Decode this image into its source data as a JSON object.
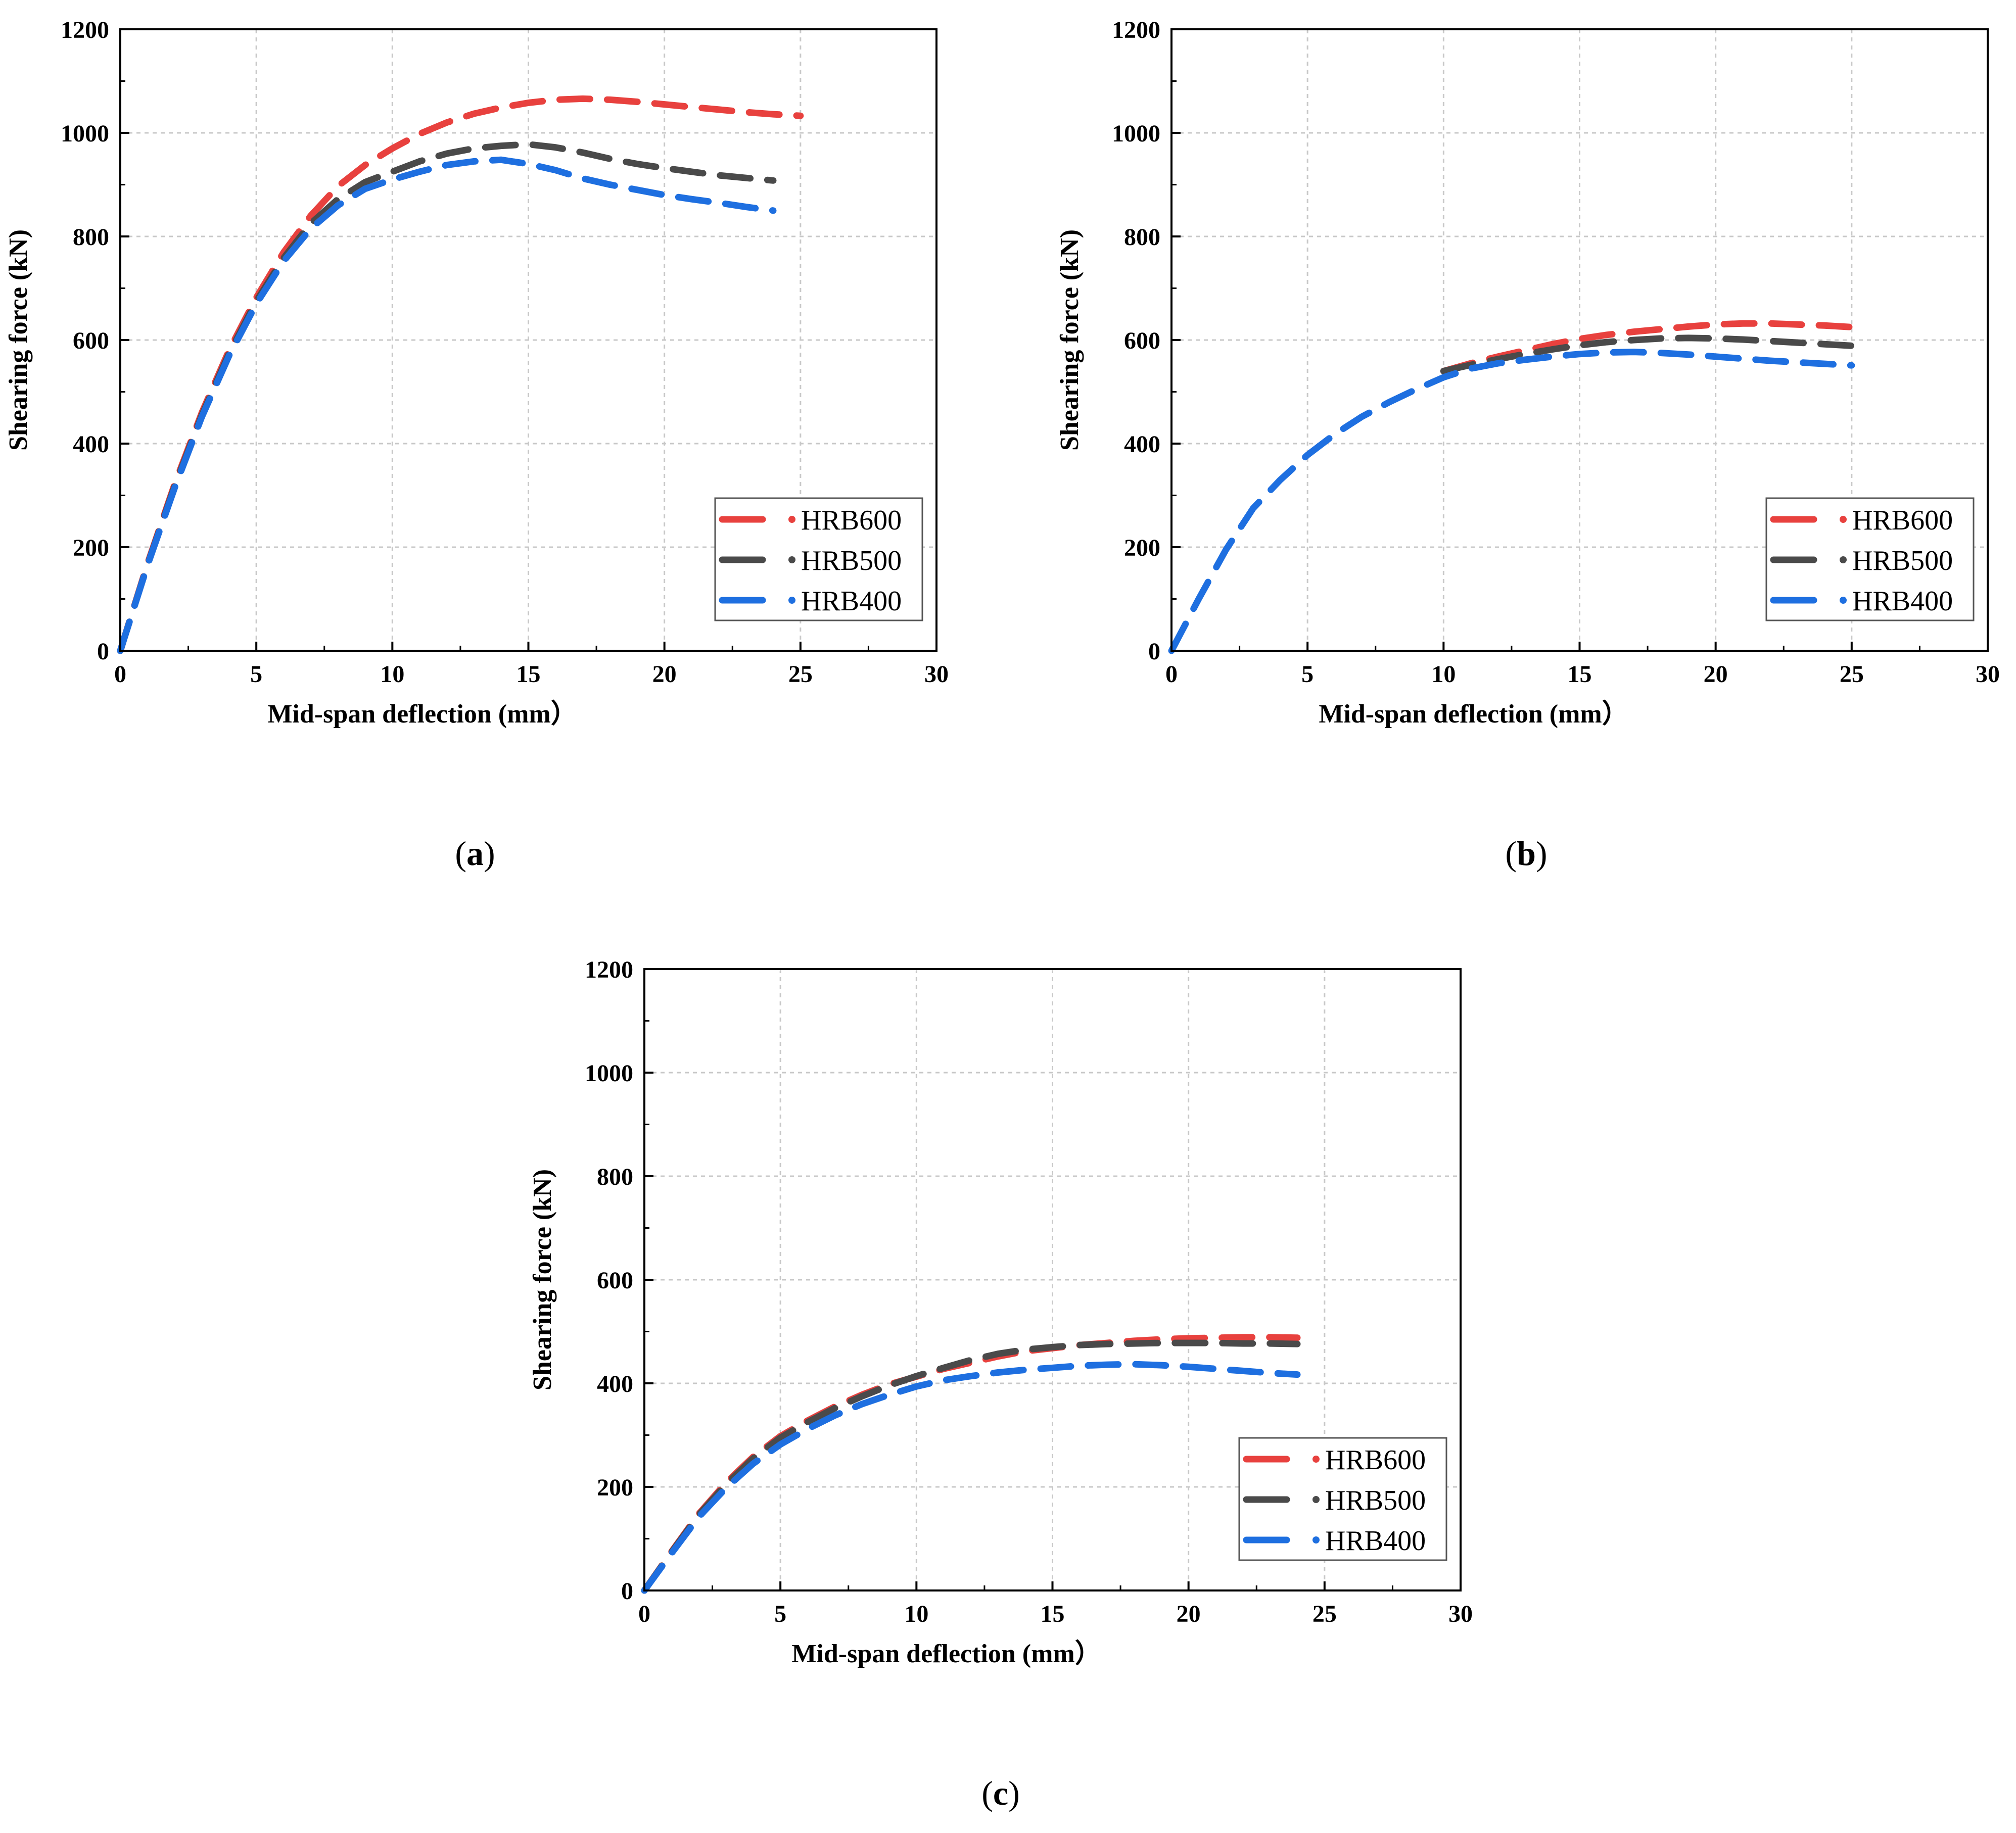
{
  "colors": {
    "HRB600": "#e8413e",
    "HRB500": "#4a4a4a",
    "HRB400": "#1e6fe0",
    "grid": "#c8c8c8",
    "axis": "#000000"
  },
  "chart_data": [
    {
      "type": "line",
      "panel_label": "(a)",
      "caption_prefix": "(",
      "caption_letter": "a",
      "caption_suffix": ")",
      "xlabel": "Mid-span deflection (mm）",
      "ylabel": "Shearing force (kN)",
      "xlim": [
        0,
        30
      ],
      "ylim": [
        0,
        1200
      ],
      "xticks": [
        "0",
        "5",
        "10",
        "15",
        "20",
        "25",
        "30"
      ],
      "yticks": [
        "0",
        "200",
        "400",
        "600",
        "800",
        "1000",
        "1200"
      ],
      "grid": true,
      "legend_position": "bottom-right",
      "series": [
        {
          "name": "HRB600",
          "x": [
            0,
            1,
            2,
            3,
            4,
            5,
            6,
            7,
            8,
            9,
            10,
            11,
            12,
            13,
            14,
            15,
            16,
            17,
            18,
            19,
            20,
            21,
            22,
            23,
            24,
            25
          ],
          "y": [
            0,
            168,
            322,
            460,
            580,
            682,
            769,
            840,
            897,
            938,
            970,
            998,
            1020,
            1037,
            1049,
            1058,
            1064,
            1066,
            1064,
            1060,
            1055,
            1050,
            1045,
            1040,
            1036,
            1033
          ]
        },
        {
          "name": "HRB500",
          "x": [
            0,
            1,
            2,
            3,
            4,
            5,
            6,
            7,
            8,
            9,
            10,
            11,
            12,
            13,
            14,
            15,
            16,
            17,
            18,
            19,
            20,
            21,
            22,
            23,
            24
          ],
          "y": [
            0,
            166,
            318,
            455,
            574,
            675,
            758,
            825,
            872,
            905,
            925,
            945,
            960,
            970,
            975,
            978,
            972,
            962,
            950,
            940,
            932,
            925,
            918,
            913,
            908
          ]
        },
        {
          "name": "HRB400",
          "x": [
            0,
            1,
            2,
            3,
            4,
            5,
            6,
            7,
            8,
            9,
            10,
            11,
            12,
            13,
            14,
            15,
            16,
            17,
            18,
            19,
            20,
            21,
            22,
            23,
            24
          ],
          "y": [
            0,
            165,
            315,
            452,
            570,
            670,
            752,
            815,
            860,
            892,
            910,
            925,
            938,
            945,
            948,
            940,
            928,
            912,
            900,
            890,
            880,
            872,
            865,
            857,
            850
          ]
        }
      ],
      "legend": [
        "HRB600",
        "HRB500",
        "HRB400"
      ]
    },
    {
      "type": "line",
      "panel_label": "(b)",
      "caption_prefix": "(",
      "caption_letter": "b",
      "caption_suffix": ")",
      "xlabel": "Mid-span deflection (mm）",
      "ylabel": "Shearing force (kN)",
      "xlim": [
        0,
        30
      ],
      "ylim": [
        0,
        1200
      ],
      "xticks": [
        "0",
        "5",
        "10",
        "15",
        "20",
        "25",
        "30"
      ],
      "yticks": [
        "0",
        "200",
        "400",
        "600",
        "800",
        "1000",
        "1200"
      ],
      "grid": true,
      "legend_position": "bottom-right",
      "series": [
        {
          "name": "HRB600",
          "x": [
            10,
            11,
            12,
            13,
            14,
            15,
            16,
            17,
            18,
            19,
            20,
            21,
            22,
            23,
            24,
            25
          ],
          "y": [
            540,
            555,
            568,
            580,
            592,
            602,
            610,
            616,
            621,
            626,
            630,
            632,
            632,
            630,
            628,
            625
          ]
        },
        {
          "name": "HRB500",
          "x": [
            10,
            11,
            12,
            13,
            14,
            15,
            16,
            17,
            18,
            19,
            20,
            21,
            22,
            23,
            24,
            25
          ],
          "y": [
            540,
            552,
            563,
            573,
            582,
            590,
            596,
            600,
            603,
            604,
            603,
            601,
            598,
            595,
            592,
            589
          ]
        },
        {
          "name": "HRB400",
          "x": [
            0,
            1,
            2,
            3,
            4,
            5,
            6,
            7,
            8,
            9,
            10,
            11,
            12,
            13,
            14,
            15,
            16,
            17,
            18,
            19,
            20,
            21,
            22,
            23,
            24,
            25
          ],
          "y": [
            0,
            100,
            195,
            275,
            330,
            378,
            418,
            452,
            480,
            505,
            528,
            545,
            555,
            562,
            568,
            573,
            576,
            577,
            575,
            572,
            568,
            564,
            560,
            557,
            554,
            551
          ]
        }
      ],
      "legend": [
        "HRB600",
        "HRB500",
        "HRB400"
      ]
    },
    {
      "type": "line",
      "panel_label": "(c)",
      "caption_prefix": "(",
      "caption_letter": "c",
      "caption_suffix": ")",
      "xlabel": "Mid-span deflection (mm）",
      "ylabel": "Shearing force (kN)",
      "xlim": [
        0,
        30
      ],
      "ylim": [
        0,
        1200
      ],
      "xticks": [
        "0",
        "5",
        "10",
        "15",
        "20",
        "25",
        "30"
      ],
      "yticks": [
        "0",
        "200",
        "400",
        "600",
        "800",
        "1000",
        "1200"
      ],
      "grid": true,
      "legend_position": "bottom-right",
      "series": [
        {
          "name": "HRB600",
          "x": [
            0,
            1,
            2,
            3,
            4,
            5,
            6,
            7,
            8,
            9,
            10,
            11,
            12,
            13,
            14,
            15,
            16,
            17,
            18,
            19,
            20,
            21,
            22,
            23,
            24
          ],
          "y": [
            0,
            75,
            148,
            208,
            258,
            298,
            328,
            355,
            378,
            398,
            413,
            428,
            440,
            452,
            462,
            468,
            474,
            478,
            482,
            485,
            487,
            488,
            489,
            489,
            488
          ]
        },
        {
          "name": "HRB500",
          "x": [
            0,
            1,
            2,
            3,
            4,
            5,
            6,
            7,
            8,
            9,
            10,
            11,
            12,
            13,
            14,
            15,
            16,
            17,
            18,
            19,
            20,
            21,
            22,
            23,
            24
          ],
          "y": [
            0,
            74,
            146,
            205,
            255,
            295,
            325,
            352,
            375,
            396,
            414,
            430,
            445,
            457,
            465,
            470,
            474,
            476,
            477,
            478,
            478,
            478,
            477,
            477,
            476
          ]
        },
        {
          "name": "HRB400",
          "x": [
            0,
            1,
            2,
            3,
            4,
            5,
            6,
            7,
            8,
            9,
            10,
            11,
            12,
            13,
            14,
            15,
            16,
            17,
            18,
            19,
            20,
            21,
            22,
            23,
            24
          ],
          "y": [
            0,
            72,
            142,
            198,
            245,
            282,
            312,
            338,
            360,
            378,
            394,
            406,
            414,
            421,
            426,
            430,
            434,
            436,
            437,
            435,
            432,
            428,
            424,
            420,
            417
          ]
        }
      ],
      "legend": [
        "HRB600",
        "HRB500",
        "HRB400"
      ]
    }
  ]
}
